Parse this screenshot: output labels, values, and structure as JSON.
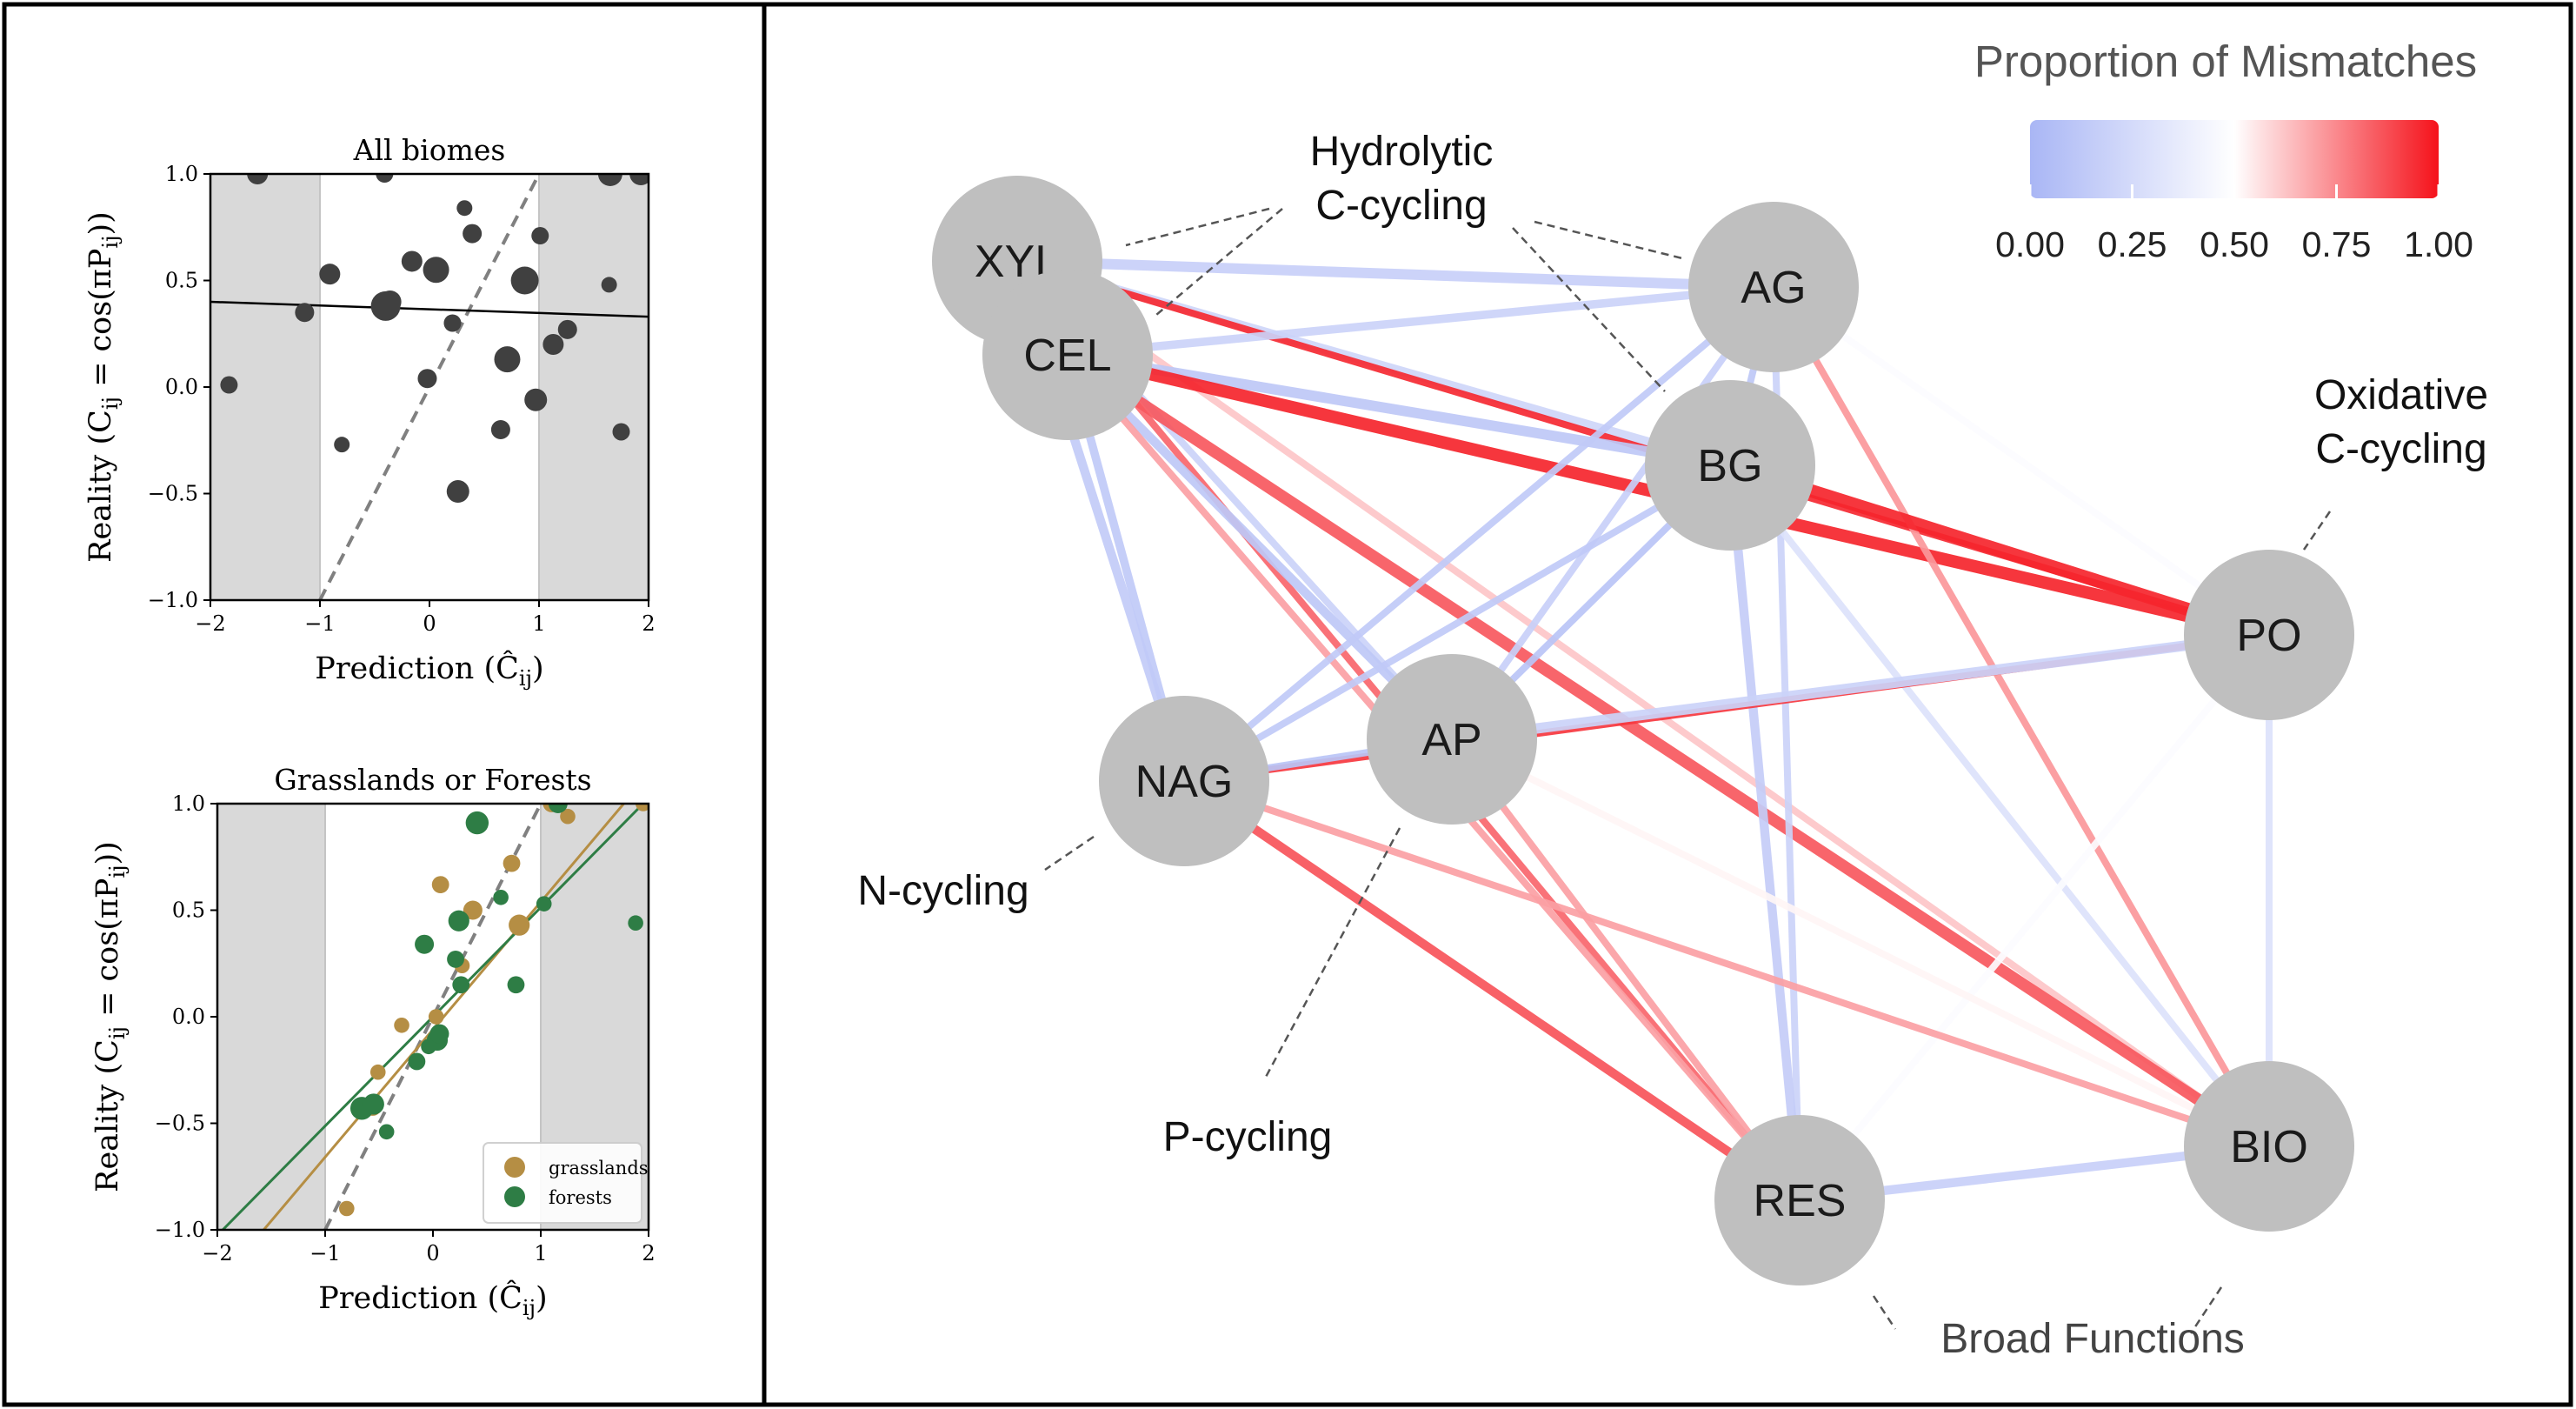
{
  "chart_data": [
    {
      "type": "scatter",
      "title": "All biomes",
      "xlabel": "Prediction (Ĉ",
      "xlabel_sub": "ij",
      "xlabel_close": ")",
      "ylabel": "Reality (C",
      "ylabel_sub": "ij",
      "ylabel_mid": " = cos(πP",
      "ylabel_sub2": "ij",
      "ylabel_close": "))",
      "xlim": [
        -2,
        2
      ],
      "ylim": [
        -1,
        1
      ],
      "xticks": [
        "−2",
        "−1",
        "0",
        "1",
        "2"
      ],
      "yticks": [
        "−1.0",
        "−0.5",
        "0.0",
        "0.5",
        "1.0"
      ],
      "shaded_x_ranges": [
        [
          -2,
          -1
        ],
        [
          1,
          2
        ]
      ],
      "identity_line": true,
      "fit_line": {
        "x": [
          -2,
          2
        ],
        "y": [
          0.4,
          0.33
        ]
      },
      "colors": {
        "points": "#404040",
        "fit": "#000000",
        "identity": "#808080",
        "shade": "#d9d9d9"
      },
      "points": [
        {
          "x": -1.57,
          "y": 1.0,
          "s": 1.2
        },
        {
          "x": -0.41,
          "y": 1.0,
          "s": 1.0
        },
        {
          "x": 1.65,
          "y": 1.0,
          "s": 1.4
        },
        {
          "x": 1.93,
          "y": 1.0,
          "s": 1.3
        },
        {
          "x": 0.32,
          "y": 0.84,
          "s": 0.9
        },
        {
          "x": 0.39,
          "y": 0.72,
          "s": 1.1
        },
        {
          "x": 1.01,
          "y": 0.71,
          "s": 1.0
        },
        {
          "x": -0.16,
          "y": 0.59,
          "s": 1.2
        },
        {
          "x": 0.06,
          "y": 0.55,
          "s": 1.5
        },
        {
          "x": -0.91,
          "y": 0.53,
          "s": 1.2
        },
        {
          "x": 0.87,
          "y": 0.5,
          "s": 1.6
        },
        {
          "x": 1.64,
          "y": 0.48,
          "s": 0.9
        },
        {
          "x": -0.4,
          "y": 0.38,
          "s": 1.7
        },
        {
          "x": -0.36,
          "y": 0.4,
          "s": 1.3
        },
        {
          "x": -1.14,
          "y": 0.35,
          "s": 1.1
        },
        {
          "x": 0.21,
          "y": 0.3,
          "s": 1.0
        },
        {
          "x": 1.26,
          "y": 0.27,
          "s": 1.1
        },
        {
          "x": 1.13,
          "y": 0.2,
          "s": 1.2
        },
        {
          "x": 0.71,
          "y": 0.13,
          "s": 1.5
        },
        {
          "x": -0.02,
          "y": 0.04,
          "s": 1.1
        },
        {
          "x": -1.83,
          "y": 0.01,
          "s": 1.0
        },
        {
          "x": 0.97,
          "y": -0.06,
          "s": 1.3
        },
        {
          "x": 0.65,
          "y": -0.2,
          "s": 1.1
        },
        {
          "x": 1.75,
          "y": -0.21,
          "s": 1.0
        },
        {
          "x": -0.8,
          "y": -0.27,
          "s": 0.9
        },
        {
          "x": 0.26,
          "y": -0.49,
          "s": 1.3
        }
      ]
    },
    {
      "type": "scatter",
      "title": "Grasslands or Forests",
      "xlabel": "Prediction (Ĉ",
      "xlabel_sub": "ij",
      "xlabel_close": ")",
      "ylabel": "Reality (C",
      "ylabel_sub": "ij",
      "ylabel_mid": " = cos(πP",
      "ylabel_sub2": "ij",
      "ylabel_close": "))",
      "xlim": [
        -2,
        2
      ],
      "ylim": [
        -1,
        1
      ],
      "xticks": [
        "−2",
        "−1",
        "0",
        "1",
        "2"
      ],
      "yticks": [
        "−1.0",
        "−0.5",
        "0.0",
        "0.5",
        "1.0"
      ],
      "shaded_x_ranges": [
        [
          -2,
          -1
        ],
        [
          1,
          2
        ]
      ],
      "identity_line": true,
      "legend_position": "lower-right",
      "series": [
        {
          "name": "grasslands",
          "color": "#b58e44",
          "fit_line": {
            "x": [
              -1.57,
              1.77
            ],
            "y": [
              -1.0,
              1.0
            ]
          },
          "points": [
            {
              "x": -0.8,
              "y": -0.9,
              "s": 0.8
            },
            {
              "x": -0.51,
              "y": -0.26,
              "s": 0.8
            },
            {
              "x": -0.29,
              "y": -0.04,
              "s": 0.8
            },
            {
              "x": 0.03,
              "y": 0.0,
              "s": 0.8
            },
            {
              "x": 0.07,
              "y": 0.62,
              "s": 0.9
            },
            {
              "x": 0.37,
              "y": 0.5,
              "s": 1.0
            },
            {
              "x": 0.27,
              "y": 0.24,
              "s": 0.8
            },
            {
              "x": 0.8,
              "y": 0.43,
              "s": 1.1
            },
            {
              "x": 0.73,
              "y": 0.72,
              "s": 0.9
            },
            {
              "x": 1.25,
              "y": 0.94,
              "s": 0.8
            },
            {
              "x": 1.1,
              "y": 1.0,
              "s": 0.9
            },
            {
              "x": 1.95,
              "y": 1.0,
              "s": 0.8
            },
            {
              "x": -0.56,
              "y": -0.42,
              "s": 1.0
            }
          ]
        },
        {
          "name": "forests",
          "color": "#2e7d45",
          "fit_line": {
            "x": [
              -1.95,
              1.95
            ],
            "y": [
              -1.0,
              1.0
            ]
          },
          "points": [
            {
              "x": -0.43,
              "y": -0.54,
              "s": 0.8
            },
            {
              "x": -0.66,
              "y": -0.43,
              "s": 1.2
            },
            {
              "x": -0.55,
              "y": -0.41,
              "s": 1.1
            },
            {
              "x": -0.15,
              "y": -0.21,
              "s": 0.9
            },
            {
              "x": 0.04,
              "y": -0.11,
              "s": 1.1
            },
            {
              "x": -0.04,
              "y": -0.14,
              "s": 0.8
            },
            {
              "x": 0.06,
              "y": -0.08,
              "s": 1.0
            },
            {
              "x": 0.26,
              "y": 0.15,
              "s": 0.9
            },
            {
              "x": 0.21,
              "y": 0.27,
              "s": 0.9
            },
            {
              "x": -0.08,
              "y": 0.34,
              "s": 1.0
            },
            {
              "x": 0.24,
              "y": 0.45,
              "s": 1.1
            },
            {
              "x": 0.63,
              "y": 0.56,
              "s": 0.8
            },
            {
              "x": 0.77,
              "y": 0.15,
              "s": 0.9
            },
            {
              "x": 1.03,
              "y": 0.53,
              "s": 0.8
            },
            {
              "x": 0.41,
              "y": 0.91,
              "s": 1.2
            },
            {
              "x": 1.16,
              "y": 1.0,
              "s": 1.0
            },
            {
              "x": 1.88,
              "y": 0.44,
              "s": 0.8
            }
          ]
        }
      ]
    },
    {
      "type": "network",
      "colorbar_title": "Proportion of Mismatches",
      "colorbar_ticks": [
        "0.00",
        "0.25",
        "0.50",
        "0.75",
        "1.00"
      ],
      "colorscale": [
        "#a9b6f5",
        "#ffffff",
        "#f5121b"
      ],
      "nodes": [
        "XYL",
        "CEL",
        "AG",
        "BG",
        "PO",
        "NAG",
        "AP",
        "RES",
        "BIO"
      ],
      "group_labels": [
        {
          "text": [
            "Hydrolytic",
            "C-cycling"
          ]
        },
        {
          "text": [
            "Oxidative",
            "C-cycling"
          ]
        },
        {
          "text": [
            "N-cycling"
          ]
        },
        {
          "text": [
            "P-cycling"
          ]
        },
        {
          "text": [
            "Broad Functions"
          ]
        }
      ],
      "edges": [
        {
          "a": "XYL",
          "b": "AG",
          "v": 0.18,
          "w": 1.5
        },
        {
          "a": "XYL",
          "b": "BG",
          "v": 0.22,
          "w": 1.3
        },
        {
          "a": "XYL",
          "b": "PO",
          "v": 0.95,
          "w": 1.0
        },
        {
          "a": "XYL",
          "b": "NAG",
          "v": 0.15,
          "w": 1.3
        },
        {
          "a": "XYL",
          "b": "AP",
          "v": 0.2,
          "w": 1.0
        },
        {
          "a": "XYL",
          "b": "RES",
          "v": 0.82,
          "w": 1.0
        },
        {
          "a": "XYL",
          "b": "BIO",
          "v": 0.62,
          "w": 1.0
        },
        {
          "a": "CEL",
          "b": "AG",
          "v": 0.2,
          "w": 1.2
        },
        {
          "a": "CEL",
          "b": "BG",
          "v": 0.12,
          "w": 1.5
        },
        {
          "a": "CEL",
          "b": "PO",
          "v": 0.96,
          "w": 1.8
        },
        {
          "a": "CEL",
          "b": "NAG",
          "v": 0.14,
          "w": 1.2
        },
        {
          "a": "CEL",
          "b": "AP",
          "v": 0.12,
          "w": 1.3
        },
        {
          "a": "CEL",
          "b": "RES",
          "v": 0.7,
          "w": 1.0
        },
        {
          "a": "CEL",
          "b": "BIO",
          "v": 0.85,
          "w": 1.7
        },
        {
          "a": "AG",
          "b": "BG",
          "v": 0.12,
          "w": 1.0
        },
        {
          "a": "AG",
          "b": "PO",
          "v": 0.48,
          "w": 1.0
        },
        {
          "a": "AG",
          "b": "NAG",
          "v": 0.14,
          "w": 1.0
        },
        {
          "a": "AG",
          "b": "AP",
          "v": 0.18,
          "w": 1.0
        },
        {
          "a": "AG",
          "b": "RES",
          "v": 0.2,
          "w": 1.0
        },
        {
          "a": "AG",
          "b": "BIO",
          "v": 0.72,
          "w": 1.0
        },
        {
          "a": "BG",
          "b": "PO",
          "v": 0.96,
          "w": 1.9
        },
        {
          "a": "BG",
          "b": "NAG",
          "v": 0.14,
          "w": 1.0
        },
        {
          "a": "BG",
          "b": "AP",
          "v": 0.1,
          "w": 1.0
        },
        {
          "a": "BG",
          "b": "RES",
          "v": 0.16,
          "w": 1.3
        },
        {
          "a": "BG",
          "b": "BIO",
          "v": 0.3,
          "w": 1.0
        },
        {
          "a": "PO",
          "b": "NAG",
          "v": 0.92,
          "w": 1.0
        },
        {
          "a": "PO",
          "b": "AP",
          "v": 0.2,
          "w": 1.5
        },
        {
          "a": "PO",
          "b": "RES",
          "v": 0.48,
          "w": 1.0
        },
        {
          "a": "PO",
          "b": "BIO",
          "v": 0.3,
          "w": 1.0
        },
        {
          "a": "NAG",
          "b": "AP",
          "v": 0.1,
          "w": 1.0
        },
        {
          "a": "NAG",
          "b": "RES",
          "v": 0.86,
          "w": 1.3
        },
        {
          "a": "NAG",
          "b": "BIO",
          "v": 0.7,
          "w": 1.0
        },
        {
          "a": "AP",
          "b": "RES",
          "v": 0.7,
          "w": 1.0
        },
        {
          "a": "AP",
          "b": "BIO",
          "v": 0.52,
          "w": 1.0
        },
        {
          "a": "RES",
          "b": "BIO",
          "v": 0.18,
          "w": 1.3
        }
      ]
    }
  ]
}
